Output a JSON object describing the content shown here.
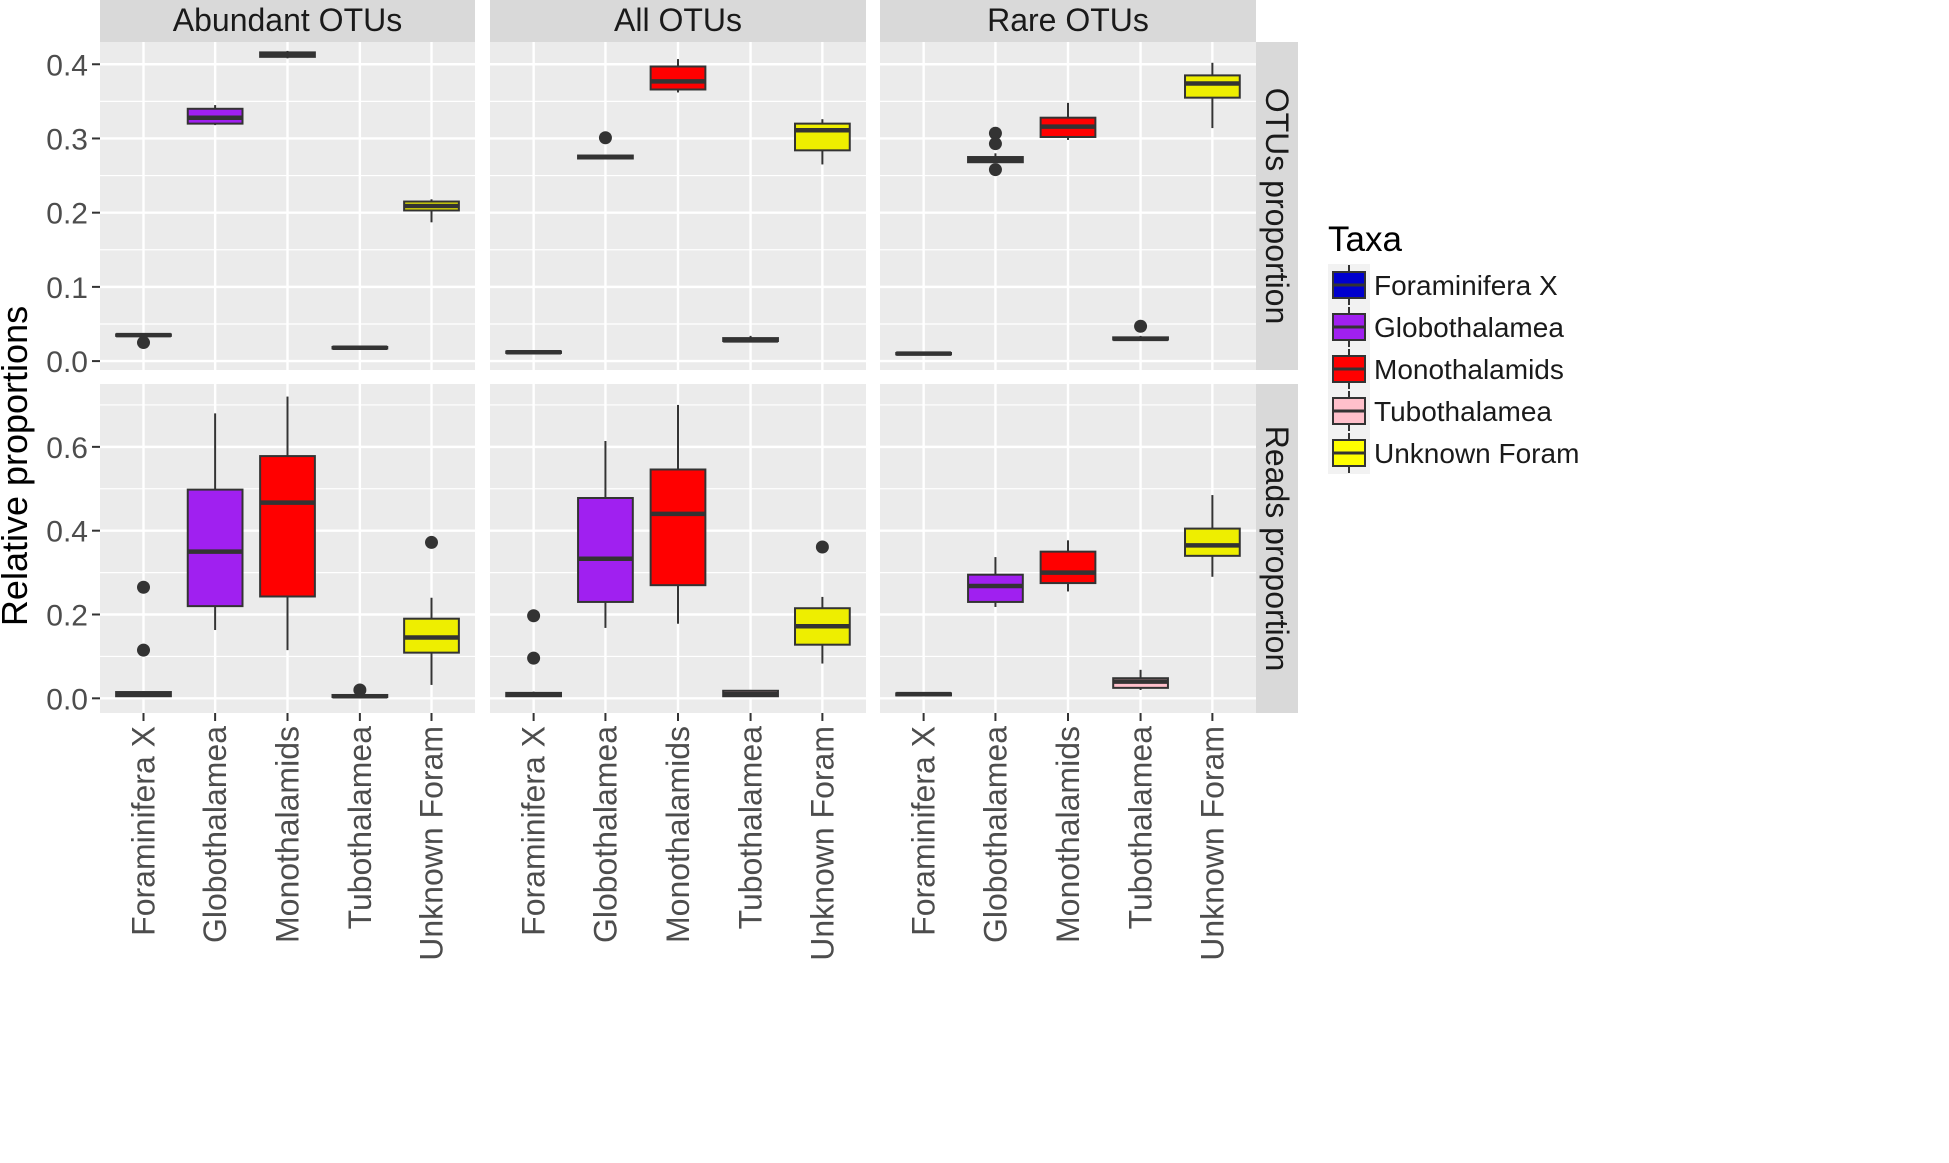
{
  "chart_data": {
    "type": "boxplot",
    "ylabel": "Relative proportions",
    "xlabel": "",
    "categories": [
      "Foraminifera X",
      "Globothalamea",
      "Monothalamids",
      "Tubothalamea",
      "Unknown Foram"
    ],
    "col_facets": [
      "Abundant OTUs",
      "All OTUs",
      "Rare OTUs"
    ],
    "row_facets": [
      "OTUs proportion",
      "Reads proportion"
    ],
    "rows": [
      {
        "name": "OTUs proportion",
        "ylim": [
          -0.012,
          0.43
        ],
        "yticks": [
          0.0,
          0.1,
          0.2,
          0.3,
          0.4
        ],
        "tick_labels": [
          "0.0",
          "0.1",
          "0.2",
          "0.3",
          "0.4"
        ]
      },
      {
        "name": "Reads proportion",
        "ylim": [
          -0.035,
          0.75
        ],
        "yticks": [
          0.0,
          0.2,
          0.4,
          0.6
        ],
        "tick_labels": [
          "0.0",
          "0.2",
          "0.4",
          "0.6"
        ]
      }
    ],
    "legend": {
      "title": "Taxa",
      "position": "right",
      "entries": [
        {
          "label": "Foraminifera X",
          "color": "#0000CD"
        },
        {
          "label": "Globothalamea",
          "color": "#A020F0"
        },
        {
          "label": "Monothalamids",
          "color": "#FF0000"
        },
        {
          "label": "Tubothalamea",
          "color": "#FFC0CB"
        },
        {
          "label": "Unknown Foram",
          "color": "#FFFF00"
        }
      ]
    },
    "colors": [
      "#0000CD",
      "#A020F0",
      "#FF0000",
      "#FFC0CB",
      "#EEEE00"
    ],
    "style": {
      "panel_bg": "#EBEBEB",
      "grid_color": "#FFFFFF",
      "strip_bg": "#D9D9D9",
      "box_line": "#333333"
    },
    "panels": [
      {
        "row": 0,
        "col": 0,
        "boxes": [
          {
            "min": 0.033,
            "q1": 0.034,
            "median": 0.035,
            "q3": 0.036,
            "max": 0.037,
            "outliers": [
              0.025
            ]
          },
          {
            "min": 0.318,
            "q1": 0.32,
            "median": 0.328,
            "q3": 0.34,
            "max": 0.345,
            "outliers": []
          },
          {
            "min": 0.408,
            "q1": 0.41,
            "median": 0.413,
            "q3": 0.416,
            "max": 0.418,
            "outliers": []
          },
          {
            "min": 0.016,
            "q1": 0.017,
            "median": 0.018,
            "q3": 0.019,
            "max": 0.02,
            "outliers": []
          },
          {
            "min": 0.187,
            "q1": 0.203,
            "median": 0.209,
            "q3": 0.215,
            "max": 0.218,
            "outliers": []
          }
        ]
      },
      {
        "row": 0,
        "col": 1,
        "boxes": [
          {
            "min": 0.01,
            "q1": 0.011,
            "median": 0.012,
            "q3": 0.013,
            "max": 0.014,
            "outliers": []
          },
          {
            "min": 0.273,
            "q1": 0.273,
            "median": 0.275,
            "q3": 0.277,
            "max": 0.278,
            "outliers": [
              0.301
            ]
          },
          {
            "min": 0.362,
            "q1": 0.366,
            "median": 0.377,
            "q3": 0.397,
            "max": 0.407,
            "outliers": []
          },
          {
            "min": 0.026,
            "q1": 0.027,
            "median": 0.028,
            "q3": 0.031,
            "max": 0.034,
            "outliers": []
          },
          {
            "min": 0.265,
            "q1": 0.284,
            "median": 0.311,
            "q3": 0.32,
            "max": 0.326,
            "outliers": []
          }
        ]
      },
      {
        "row": 0,
        "col": 2,
        "boxes": [
          {
            "min": 0.008,
            "q1": 0.009,
            "median": 0.01,
            "q3": 0.011,
            "max": 0.012,
            "outliers": []
          },
          {
            "min": 0.268,
            "q1": 0.268,
            "median": 0.272,
            "q3": 0.275,
            "max": 0.28,
            "outliers": [
              0.258,
              0.293,
              0.307
            ]
          },
          {
            "min": 0.298,
            "q1": 0.302,
            "median": 0.316,
            "q3": 0.328,
            "max": 0.348,
            "outliers": []
          },
          {
            "min": 0.029,
            "q1": 0.029,
            "median": 0.03,
            "q3": 0.032,
            "max": 0.034,
            "outliers": [
              0.047
            ]
          },
          {
            "min": 0.314,
            "q1": 0.355,
            "median": 0.374,
            "q3": 0.385,
            "max": 0.402,
            "outliers": []
          }
        ]
      },
      {
        "row": 1,
        "col": 0,
        "boxes": [
          {
            "min": 0.004,
            "q1": 0.005,
            "median": 0.01,
            "q3": 0.015,
            "max": 0.017,
            "outliers": [
              0.115,
              0.265
            ]
          },
          {
            "min": 0.163,
            "q1": 0.22,
            "median": 0.35,
            "q3": 0.498,
            "max": 0.68,
            "outliers": []
          },
          {
            "min": 0.115,
            "q1": 0.243,
            "median": 0.467,
            "q3": 0.578,
            "max": 0.72,
            "outliers": []
          },
          {
            "min": 0.002,
            "q1": 0.003,
            "median": 0.005,
            "q3": 0.008,
            "max": 0.01,
            "outliers": [
              0.02
            ]
          },
          {
            "min": 0.032,
            "q1": 0.109,
            "median": 0.145,
            "q3": 0.19,
            "max": 0.24,
            "outliers": [
              0.372
            ]
          }
        ]
      },
      {
        "row": 1,
        "col": 1,
        "boxes": [
          {
            "min": 0.004,
            "q1": 0.005,
            "median": 0.009,
            "q3": 0.013,
            "max": 0.016,
            "outliers": [
              0.096,
              0.197
            ]
          },
          {
            "min": 0.168,
            "q1": 0.23,
            "median": 0.333,
            "q3": 0.478,
            "max": 0.614,
            "outliers": []
          },
          {
            "min": 0.178,
            "q1": 0.27,
            "median": 0.44,
            "q3": 0.546,
            "max": 0.7,
            "outliers": []
          },
          {
            "min": 0.004,
            "q1": 0.005,
            "median": 0.01,
            "q3": 0.018,
            "max": 0.02,
            "outliers": []
          },
          {
            "min": 0.083,
            "q1": 0.128,
            "median": 0.172,
            "q3": 0.215,
            "max": 0.242,
            "outliers": [
              0.361
            ]
          }
        ]
      },
      {
        "row": 1,
        "col": 2,
        "boxes": [
          {
            "min": 0.007,
            "q1": 0.007,
            "median": 0.01,
            "q3": 0.012,
            "max": 0.014,
            "outliers": []
          },
          {
            "min": 0.218,
            "q1": 0.23,
            "median": 0.268,
            "q3": 0.295,
            "max": 0.337,
            "outliers": []
          },
          {
            "min": 0.255,
            "q1": 0.275,
            "median": 0.3,
            "q3": 0.35,
            "max": 0.377,
            "outliers": []
          },
          {
            "min": 0.02,
            "q1": 0.025,
            "median": 0.04,
            "q3": 0.048,
            "max": 0.068,
            "outliers": []
          },
          {
            "min": 0.29,
            "q1": 0.34,
            "median": 0.365,
            "q3": 0.405,
            "max": 0.485,
            "outliers": []
          }
        ]
      }
    ]
  }
}
